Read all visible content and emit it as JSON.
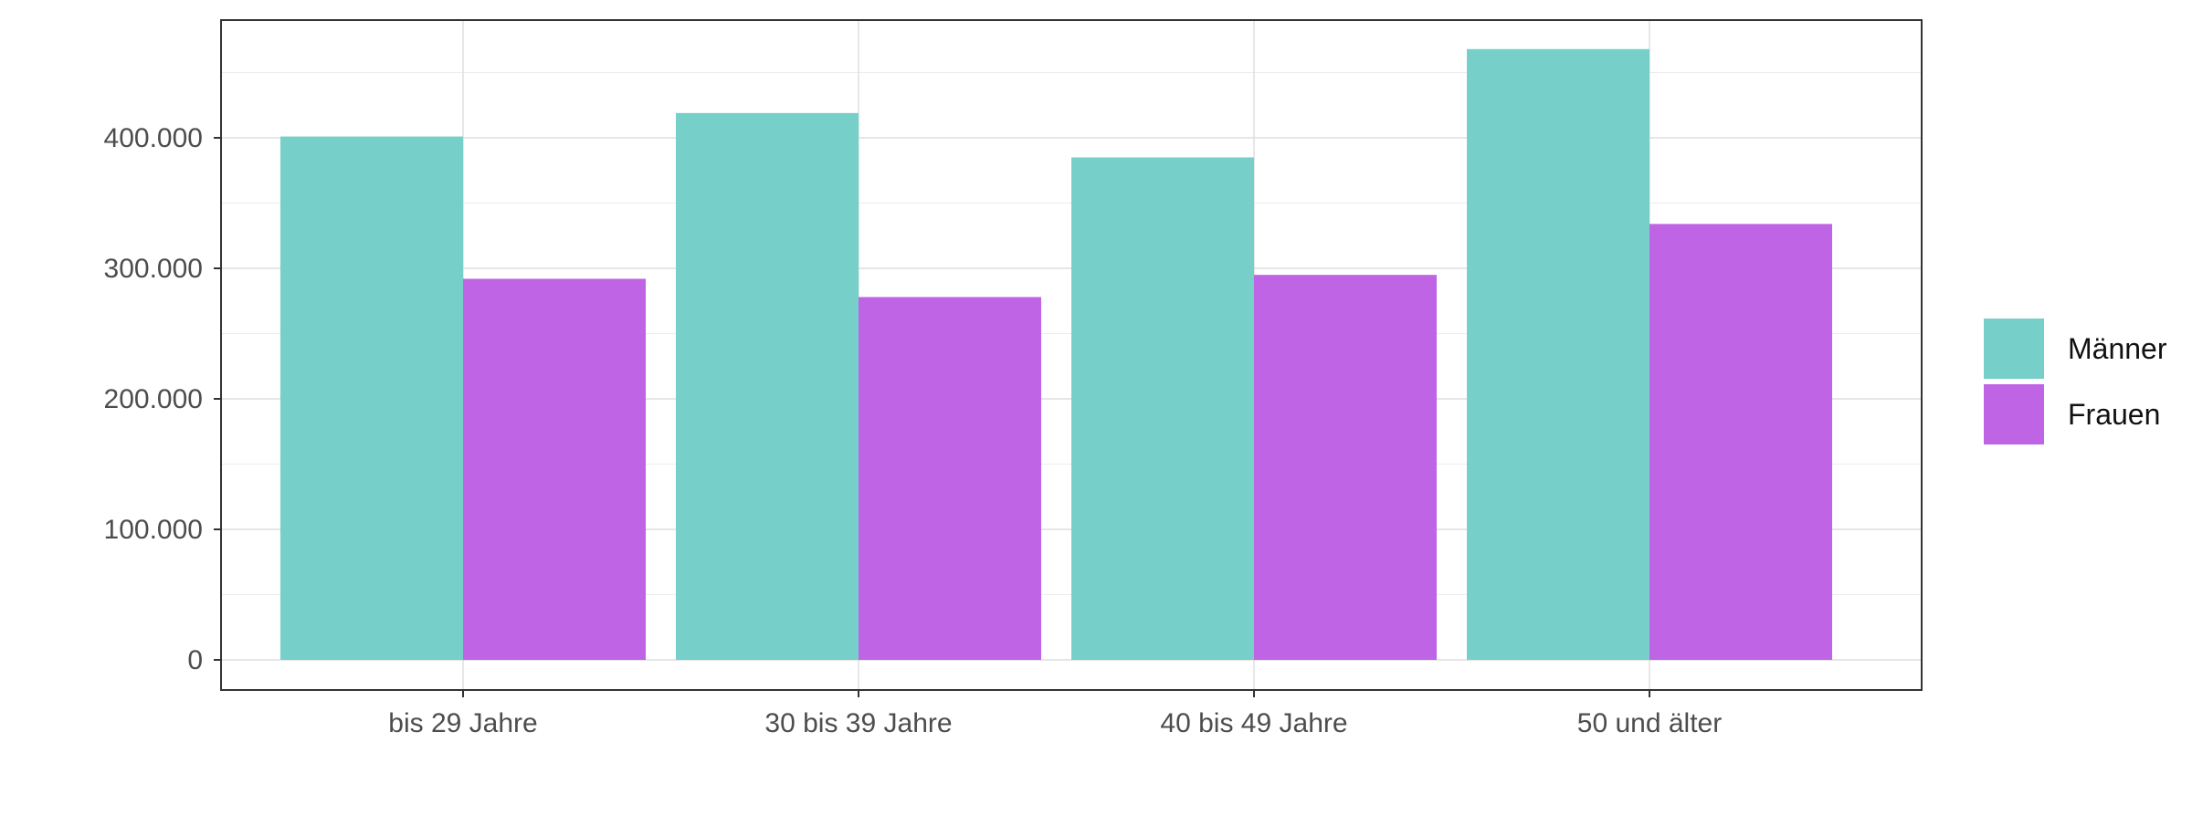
{
  "chart_data": {
    "type": "bar",
    "categories": [
      "bis 29 Jahre",
      "30 bis 39 Jahre",
      "40 bis 49 Jahre",
      "50 und älter"
    ],
    "series": [
      {
        "name": "Männer",
        "values": [
          401000,
          419000,
          385000,
          468000
        ],
        "color": "#76d0c9"
      },
      {
        "name": "Frauen",
        "values": [
          292000,
          278000,
          295000,
          334000
        ],
        "color": "#bf64e4"
      }
    ],
    "title": "",
    "xlabel": "",
    "ylabel": "",
    "ylim": [
      0,
      500000
    ],
    "yticks": [
      0,
      100000,
      200000,
      300000,
      400000
    ],
    "ytick_labels": [
      "0",
      "100.000",
      "200.000",
      "300.000",
      "400.000"
    ],
    "grid": true,
    "legend_position": "right"
  }
}
